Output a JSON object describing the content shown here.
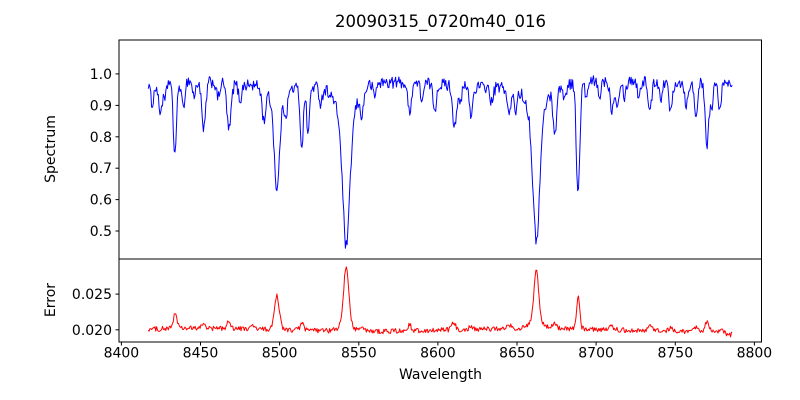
{
  "chart_data": {
    "type": "line",
    "title": "20090315_0720m40_016",
    "xlabel": "Wavelength",
    "xlim": [
      8398.5,
      8804.5
    ],
    "xticks": [
      8400,
      8450,
      8500,
      8550,
      8600,
      8650,
      8700,
      8750,
      8800
    ],
    "xtick_labels": [
      "8400",
      "8450",
      "8500",
      "8550",
      "8600",
      "8650",
      "8700",
      "8750",
      "8800"
    ],
    "grid": false,
    "legend": null,
    "frame_color": "#000000",
    "panels": [
      {
        "name": "spectrum",
        "ylabel": "Spectrum",
        "line_color": "#0000ff",
        "ylim": [
          0.411,
          1.108
        ],
        "yticks": [
          0.5,
          0.6,
          0.7,
          0.8,
          0.9,
          1.0
        ],
        "ytick_labels": [
          "0.5",
          "0.6",
          "0.7",
          "0.8",
          "0.9",
          "1.0"
        ],
        "x_start": 8417,
        "x_end": 8786,
        "n_points": 700,
        "continuum_level": 0.97,
        "continuum_tilt": 2e-05,
        "undulation_amplitude": 0.009,
        "noise_amplitude": 0.019,
        "absorption_lines": [
          {
            "center": 8419.5,
            "depth": 0.07,
            "width": 1.2
          },
          {
            "center": 8424.5,
            "depth": 0.1,
            "width": 1.2
          },
          {
            "center": 8427.5,
            "depth": 0.06,
            "width": 1.0
          },
          {
            "center": 8433.8,
            "depth": 0.23,
            "width": 1.1
          },
          {
            "center": 8439.0,
            "depth": 0.09,
            "width": 1.0
          },
          {
            "center": 8446.0,
            "depth": 0.05,
            "width": 1.0
          },
          {
            "center": 8452.0,
            "depth": 0.16,
            "width": 1.2
          },
          {
            "center": 8461.0,
            "depth": 0.05,
            "width": 1.0
          },
          {
            "center": 8468.0,
            "depth": 0.15,
            "width": 1.3
          },
          {
            "center": 8475.0,
            "depth": 0.05,
            "width": 1.0
          },
          {
            "center": 8490.0,
            "depth": 0.1,
            "width": 1.1
          },
          {
            "center": 8498.3,
            "depth": 0.27,
            "width": 1.6
          },
          {
            "center": 8498.3,
            "depth": 0.06,
            "width": 4.5
          },
          {
            "center": 8504.0,
            "depth": 0.06,
            "width": 1.0
          },
          {
            "center": 8514.0,
            "depth": 0.19,
            "width": 1.0
          },
          {
            "center": 8518.0,
            "depth": 0.15,
            "width": 0.9
          },
          {
            "center": 8526.0,
            "depth": 0.05,
            "width": 1.0
          },
          {
            "center": 8542.1,
            "depth": 0.4,
            "width": 2.2
          },
          {
            "center": 8542.1,
            "depth": 0.115,
            "width": 6.0
          },
          {
            "center": 8552.0,
            "depth": 0.07,
            "width": 1.2
          },
          {
            "center": 8560.0,
            "depth": 0.04,
            "width": 1.0
          },
          {
            "center": 8582.0,
            "depth": 0.09,
            "width": 1.2
          },
          {
            "center": 8590.0,
            "depth": 0.05,
            "width": 1.0
          },
          {
            "center": 8598.0,
            "depth": 0.08,
            "width": 1.1
          },
          {
            "center": 8610.5,
            "depth": 0.13,
            "width": 1.2
          },
          {
            "center": 8614.0,
            "depth": 0.06,
            "width": 1.0
          },
          {
            "center": 8621.0,
            "depth": 0.09,
            "width": 1.1
          },
          {
            "center": 8634.0,
            "depth": 0.05,
            "width": 1.0
          },
          {
            "center": 8645.0,
            "depth": 0.09,
            "width": 1.1
          },
          {
            "center": 8649.0,
            "depth": 0.07,
            "width": 1.0
          },
          {
            "center": 8662.2,
            "depth": 0.39,
            "width": 2.1
          },
          {
            "center": 8662.2,
            "depth": 0.1,
            "width": 5.5
          },
          {
            "center": 8674.0,
            "depth": 0.14,
            "width": 1.2
          },
          {
            "center": 8680.0,
            "depth": 0.05,
            "width": 1.0
          },
          {
            "center": 8688.6,
            "depth": 0.36,
            "width": 1.1
          },
          {
            "center": 8694.0,
            "depth": 0.05,
            "width": 1.0
          },
          {
            "center": 8702.0,
            "depth": 0.05,
            "width": 1.0
          },
          {
            "center": 8710.0,
            "depth": 0.09,
            "width": 1.2
          },
          {
            "center": 8713.5,
            "depth": 0.07,
            "width": 1.0
          },
          {
            "center": 8718.0,
            "depth": 0.05,
            "width": 1.0
          },
          {
            "center": 8727.0,
            "depth": 0.05,
            "width": 1.0
          },
          {
            "center": 8734.0,
            "depth": 0.09,
            "width": 1.2
          },
          {
            "center": 8741.0,
            "depth": 0.05,
            "width": 1.0
          },
          {
            "center": 8747.0,
            "depth": 0.09,
            "width": 1.1
          },
          {
            "center": 8757.0,
            "depth": 0.07,
            "width": 1.0
          },
          {
            "center": 8763.0,
            "depth": 0.1,
            "width": 1.0
          },
          {
            "center": 8770.0,
            "depth": 0.2,
            "width": 1.1
          },
          {
            "center": 8773.0,
            "depth": 0.07,
            "width": 1.0
          },
          {
            "center": 8778.0,
            "depth": 0.07,
            "width": 1.0
          }
        ]
      },
      {
        "name": "error",
        "ylabel": "Error",
        "line_color": "#ff0000",
        "ylim": [
          0.0183,
          0.0299
        ],
        "yticks": [
          0.02,
          0.025
        ],
        "ytick_labels": [
          "0.020",
          "0.025"
        ],
        "x_start": 8417,
        "x_end": 8786,
        "n_points": 700,
        "baseline_level": 0.02,
        "noise_amplitude": 0.00035,
        "peaks": [
          {
            "center": 8434.0,
            "height": 0.0021,
            "width": 1.2
          },
          {
            "center": 8452.0,
            "height": 0.0007,
            "width": 1.2
          },
          {
            "center": 8468.0,
            "height": 0.0009,
            "width": 1.3
          },
          {
            "center": 8483.0,
            "height": 0.0005,
            "width": 1.0
          },
          {
            "center": 8498.3,
            "height": 0.0047,
            "width": 1.5
          },
          {
            "center": 8514.0,
            "height": 0.0011,
            "width": 1.0
          },
          {
            "center": 8542.1,
            "height": 0.008,
            "width": 1.6
          },
          {
            "center": 8542.1,
            "height": 0.001,
            "width": 4.0
          },
          {
            "center": 8552.0,
            "height": 0.0005,
            "width": 1.2
          },
          {
            "center": 8582.0,
            "height": 0.0008,
            "width": 1.2
          },
          {
            "center": 8610.0,
            "height": 0.001,
            "width": 1.2
          },
          {
            "center": 8621.0,
            "height": 0.0005,
            "width": 1.0
          },
          {
            "center": 8645.0,
            "height": 0.0006,
            "width": 1.0
          },
          {
            "center": 8662.2,
            "height": 0.0072,
            "width": 1.5
          },
          {
            "center": 8662.2,
            "height": 0.0009,
            "width": 4.0
          },
          {
            "center": 8674.0,
            "height": 0.0008,
            "width": 1.2
          },
          {
            "center": 8688.6,
            "height": 0.0044,
            "width": 1.0
          },
          {
            "center": 8710.0,
            "height": 0.0005,
            "width": 1.2
          },
          {
            "center": 8734.0,
            "height": 0.0008,
            "width": 1.2
          },
          {
            "center": 8747.0,
            "height": 0.0005,
            "width": 1.0
          },
          {
            "center": 8763.0,
            "height": 0.0006,
            "width": 1.0
          },
          {
            "center": 8770.0,
            "height": 0.0012,
            "width": 1.1
          },
          {
            "center": 8784.0,
            "height": -0.0006,
            "width": 1.5
          }
        ]
      }
    ]
  }
}
